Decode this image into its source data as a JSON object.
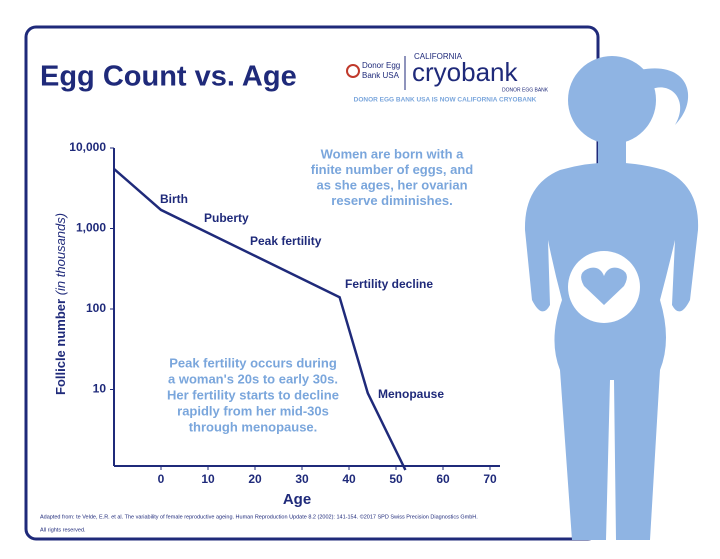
{
  "chart_data": {
    "type": "line",
    "title": "Egg Count vs. Age",
    "x_label": "Age",
    "y_label": "Follicle number",
    "y_label_note": "(in thousands)",
    "log_y": true,
    "color": "#1f2a7a",
    "x": [
      -10,
      0,
      38,
      44,
      52
    ],
    "values": [
      5500,
      1700,
      140,
      9,
      1
    ],
    "xlim": [
      -10,
      70
    ],
    "xticks": [
      0,
      10,
      20,
      30,
      40,
      50,
      60,
      70
    ],
    "ylim": [
      1,
      10000
    ],
    "yticks": [
      {
        "value": 10000,
        "label": "10,000"
      },
      {
        "value": 1000,
        "label": "1,000"
      },
      100,
      10
    ],
    "annotations": [
      "Birth",
      "Puberty",
      "Peak fertility",
      "Fertility decline",
      "Menopause"
    ],
    "note_top": [
      "Women are born with a",
      "finite number of eggs, and",
      "as she ages, her ovarian",
      "reserve diminishes."
    ],
    "note_bottom": [
      "Peak fertility occurs during",
      "a woman's 20s to early 30s.",
      "Her fertility starts to decline",
      "rapidly from her mid-30s",
      "through menopause."
    ],
    "logo": {
      "left": [
        "Donor Egg",
        "Bank USA"
      ],
      "top": "CALIFORNIA",
      "brand": "cryobank",
      "sub": "DONOR EGG BANK"
    },
    "tagline": "DONOR EGG BANK USA IS NOW CALIFORNIA CRYOBANK",
    "footnote": [
      "Adapted from: te Velde, E.R. et al. The variability of female reproductive ageing.  Human Reproduction Update 8.2 (2002): 141-154.  ©2017 SPD Swiss Precision Diagnostics GmbH.",
      "All rights reserved."
    ]
  }
}
